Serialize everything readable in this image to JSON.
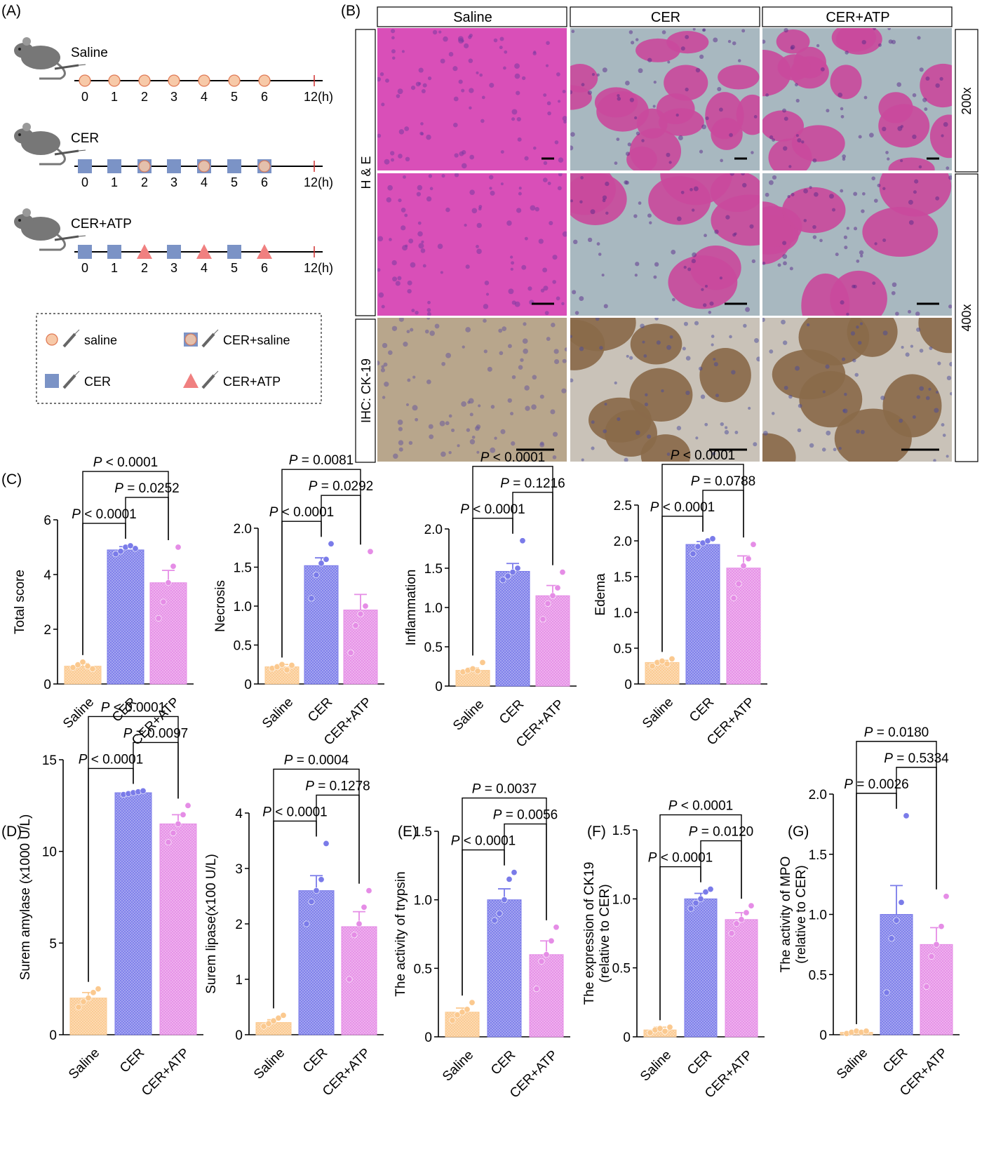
{
  "panel_labels": {
    "A": "(A)",
    "B": "(B)",
    "C": "(C)",
    "D": "(D)",
    "E": "(E)",
    "F": "(F)",
    "G": "(G)"
  },
  "panel_a": {
    "groups": [
      {
        "name": "Saline",
        "markers": [
          "circle",
          "circle",
          "circle",
          "circle",
          "circle",
          "circle",
          "circle"
        ]
      },
      {
        "name": "CER",
        "markers": [
          "square",
          "square",
          "combo",
          "square",
          "combo",
          "square",
          "combo"
        ]
      },
      {
        "name": "CER+ATP",
        "markers": [
          "square",
          "square",
          "triangle",
          "square",
          "triangle",
          "square",
          "triangle"
        ]
      }
    ],
    "ticks": [
      "0",
      "1",
      "2",
      "3",
      "4",
      "5",
      "6",
      "12(h)"
    ],
    "legend": [
      {
        "shape": "circle",
        "label": "saline"
      },
      {
        "shape": "combo",
        "label": "CER+saline"
      },
      {
        "shape": "square",
        "label": "CER"
      },
      {
        "shape": "triangle",
        "label": "CER+ATP"
      }
    ],
    "colors": {
      "saline_fill": "#f7c9a8",
      "saline_stroke": "#e07a55",
      "cer": "#7b93c6",
      "atp": "#f08080",
      "mouse": "#777777"
    }
  },
  "panel_b": {
    "columns": [
      "Saline",
      "CER",
      "CER+ATP"
    ],
    "row_labels": [
      "H & E",
      "IHC: CK-19"
    ],
    "magnifications": [
      "200x",
      "400x"
    ],
    "colors": {
      "he_saline": "#d94fb8",
      "he_tissue": "#c94a9c",
      "he_bg": "#a8b8c0",
      "ihc_saline": "#b8a68c",
      "ihc_tissue": "#8a6a4a",
      "ihc_bg": "#c9c2b8"
    }
  },
  "chart_colors": {
    "Saline": "#fbc98f",
    "CER": "#7a7be9",
    "CER+ATP": "#e58de6"
  },
  "chart_data": [
    {
      "type": "bar",
      "id": "C1",
      "categories": [
        "Saline",
        "CER",
        "CER+ATP"
      ],
      "ylabel": "Total score",
      "ylim": [
        0,
        6
      ],
      "yticks": [
        "0",
        "2",
        "4",
        "6"
      ],
      "means": [
        0.65,
        4.9,
        3.7
      ],
      "sem": [
        0.1,
        0.12,
        0.45
      ],
      "points": [
        [
          0.6,
          0.7,
          0.8,
          0.65,
          0.55
        ],
        [
          4.75,
          4.85,
          5.0,
          5.05,
          4.95
        ],
        [
          2.4,
          3.0,
          3.7,
          4.3,
          5.0
        ]
      ],
      "comparisons": [
        {
          "label": "P < 0.0001",
          "a": 0,
          "b": 1
        },
        {
          "label": "P = 0.0252",
          "a": 1,
          "b": 2
        },
        {
          "label": "P < 0.0001",
          "a": 0,
          "b": 2
        }
      ]
    },
    {
      "type": "bar",
      "id": "C2",
      "categories": [
        "Saline",
        "CER",
        "CER+ATP"
      ],
      "ylabel": "Necrosis",
      "ylim": [
        0,
        2
      ],
      "yticks": [
        "0",
        "0.5",
        "1.0",
        "1.5",
        "2.0"
      ],
      "means": [
        0.22,
        1.52,
        0.95
      ],
      "sem": [
        0.03,
        0.1,
        0.2
      ],
      "points": [
        [
          0.2,
          0.22,
          0.25,
          0.18,
          0.24
        ],
        [
          1.1,
          1.4,
          1.55,
          1.6,
          1.8
        ],
        [
          0.4,
          0.75,
          0.9,
          1.0,
          1.7
        ]
      ],
      "comparisons": [
        {
          "label": "P < 0.0001",
          "a": 0,
          "b": 1
        },
        {
          "label": "P = 0.0292",
          "a": 1,
          "b": 2
        },
        {
          "label": "P = 0.0081",
          "a": 0,
          "b": 2
        }
      ]
    },
    {
      "type": "bar",
      "id": "C3",
      "categories": [
        "Saline",
        "CER",
        "CER+ATP"
      ],
      "ylabel": "Inflammation",
      "ylim": [
        0,
        2
      ],
      "yticks": [
        "0",
        "0.5",
        "1.0",
        "1.5",
        "2.0"
      ],
      "means": [
        0.2,
        1.46,
        1.15
      ],
      "sem": [
        0.03,
        0.1,
        0.13
      ],
      "points": [
        [
          0.18,
          0.2,
          0.22,
          0.19,
          0.3
        ],
        [
          1.35,
          1.4,
          1.45,
          1.5,
          1.85
        ],
        [
          0.85,
          1.05,
          1.15,
          1.25,
          1.45
        ]
      ],
      "comparisons": [
        {
          "label": "P < 0.0001",
          "a": 0,
          "b": 1
        },
        {
          "label": "P = 0.1216",
          "a": 1,
          "b": 2
        },
        {
          "label": "P < 0.0001",
          "a": 0,
          "b": 2
        }
      ]
    },
    {
      "type": "bar",
      "id": "C4",
      "categories": [
        "Saline",
        "CER",
        "CER+ATP"
      ],
      "ylabel": "Edema",
      "ylim": [
        0,
        2.5
      ],
      "yticks": [
        "0",
        "0.5",
        "1.0",
        "1.5",
        "2.0",
        "2.5"
      ],
      "means": [
        0.3,
        1.95,
        1.62
      ],
      "sem": [
        0.03,
        0.04,
        0.17
      ],
      "points": [
        [
          0.25,
          0.3,
          0.32,
          0.28,
          0.35
        ],
        [
          1.82,
          1.92,
          1.97,
          2.0,
          2.03
        ],
        [
          1.2,
          1.4,
          1.65,
          1.75,
          1.95
        ]
      ],
      "comparisons": [
        {
          "label": "P < 0.0001",
          "a": 0,
          "b": 1
        },
        {
          "label": "P = 0.0788",
          "a": 1,
          "b": 2
        },
        {
          "label": "P < 0.0001",
          "a": 0,
          "b": 2
        }
      ]
    },
    {
      "type": "bar",
      "id": "D1",
      "categories": [
        "Saline",
        "CER",
        "CER+ATP"
      ],
      "ylabel": "Surem amylase (x1000 U/L)",
      "ylim": [
        0,
        15
      ],
      "yticks": [
        "0",
        "5",
        "10",
        "15"
      ],
      "means": [
        2.0,
        13.2,
        11.5
      ],
      "sem": [
        0.3,
        0.05,
        0.5
      ],
      "points": [
        [
          1.5,
          1.8,
          2.0,
          2.3,
          2.5
        ],
        [
          13.1,
          13.15,
          13.2,
          13.25,
          13.3
        ],
        [
          10.5,
          11.0,
          11.5,
          12.0,
          12.5
        ]
      ],
      "comparisons": [
        {
          "label": "P < 0.0001",
          "a": 0,
          "b": 1
        },
        {
          "label": "P = 0.0097",
          "a": 1,
          "b": 2
        },
        {
          "label": "P < 0.0001",
          "a": 0,
          "b": 2
        }
      ]
    },
    {
      "type": "bar",
      "id": "D2",
      "categories": [
        "Saline",
        "CER",
        "CER+ATP"
      ],
      "ylabel": "Surem lipase(x100 U/L)",
      "ylim": [
        0,
        4
      ],
      "yticks": [
        "0",
        "1",
        "2",
        "3",
        "4"
      ],
      "means": [
        0.22,
        2.6,
        1.95
      ],
      "sem": [
        0.05,
        0.27,
        0.27
      ],
      "points": [
        [
          0.15,
          0.2,
          0.25,
          0.3,
          0.35
        ],
        [
          2.0,
          2.4,
          2.6,
          2.8,
          3.45
        ],
        [
          1.0,
          1.8,
          2.0,
          2.3,
          2.6
        ]
      ],
      "comparisons": [
        {
          "label": "P < 0.0001",
          "a": 0,
          "b": 1
        },
        {
          "label": "P = 0.1278",
          "a": 1,
          "b": 2
        },
        {
          "label": "P = 0.0004",
          "a": 0,
          "b": 2
        }
      ]
    },
    {
      "type": "bar",
      "id": "E",
      "categories": [
        "Saline",
        "CER",
        "CER+ATP"
      ],
      "ylabel": "The activity of trypsin",
      "ylim": [
        0,
        1.5
      ],
      "yticks": [
        "0",
        "0.5",
        "1.0",
        "1.5"
      ],
      "means": [
        0.18,
        1.0,
        0.6
      ],
      "sem": [
        0.03,
        0.08,
        0.1
      ],
      "points": [
        [
          0.12,
          0.16,
          0.18,
          0.2,
          0.25
        ],
        [
          0.85,
          0.9,
          1.0,
          1.15,
          1.2
        ],
        [
          0.35,
          0.55,
          0.6,
          0.7,
          0.8
        ]
      ],
      "comparisons": [
        {
          "label": "P < 0.0001",
          "a": 0,
          "b": 1
        },
        {
          "label": "P = 0.0056",
          "a": 1,
          "b": 2
        },
        {
          "label": "P = 0.0037",
          "a": 0,
          "b": 2
        }
      ]
    },
    {
      "type": "bar",
      "id": "F",
      "categories": [
        "Saline",
        "CER",
        "CER+ATP"
      ],
      "ylabel": "The expression of CK19",
      "ylabel2": "(relative to CER)",
      "ylim": [
        0,
        1.5
      ],
      "yticks": [
        "0",
        "0.5",
        "1.0",
        "1.5"
      ],
      "means": [
        0.05,
        1.0,
        0.85
      ],
      "sem": [
        0.02,
        0.04,
        0.05
      ],
      "points": [
        [
          0.03,
          0.05,
          0.06,
          0.04,
          0.07
        ],
        [
          0.93,
          0.97,
          1.0,
          1.05,
          1.07
        ],
        [
          0.75,
          0.82,
          0.85,
          0.9,
          0.95
        ]
      ],
      "comparisons": [
        {
          "label": "P < 0.0001",
          "a": 0,
          "b": 1
        },
        {
          "label": "P = 0.0120",
          "a": 1,
          "b": 2
        },
        {
          "label": "P < 0.0001",
          "a": 0,
          "b": 2
        }
      ]
    },
    {
      "type": "bar",
      "id": "G",
      "categories": [
        "Saline",
        "CER",
        "CER+ATP"
      ],
      "ylabel": "The activity of MPO",
      "ylabel2": "(relative to CER)",
      "ylim": [
        0,
        2.0
      ],
      "yticks": [
        "0",
        "0.5",
        "1.0",
        "1.5",
        "2.0"
      ],
      "means": [
        0.02,
        1.0,
        0.75
      ],
      "sem": [
        0.01,
        0.24,
        0.14
      ],
      "points": [
        [
          0.01,
          0.02,
          0.03,
          0.02,
          0.03
        ],
        [
          0.35,
          0.8,
          0.95,
          1.1,
          1.82
        ],
        [
          0.4,
          0.65,
          0.75,
          0.9,
          1.15
        ]
      ],
      "comparisons": [
        {
          "label": "P = 0.0026",
          "a": 0,
          "b": 1
        },
        {
          "label": "P = 0.5334",
          "a": 1,
          "b": 2
        },
        {
          "label": "P = 0.0180",
          "a": 0,
          "b": 2
        }
      ]
    }
  ]
}
